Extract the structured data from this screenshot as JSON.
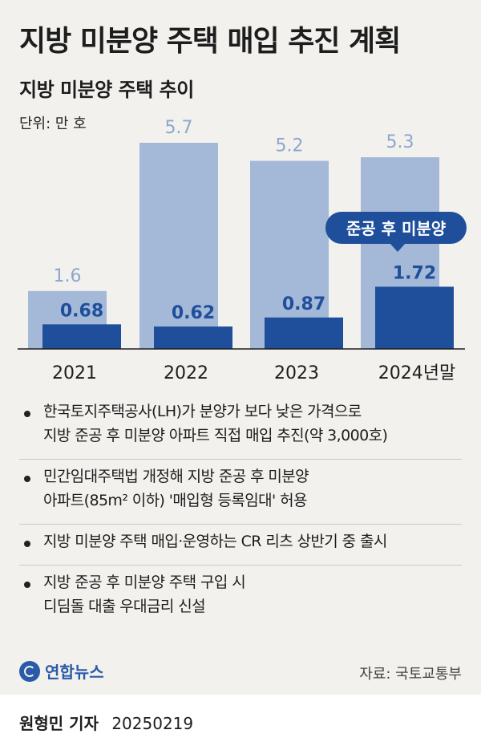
{
  "title": "지방 미분양 주택 매입 추진 계획",
  "subtitle": "지방 미분양 주택 추이",
  "unit": "단위: 만 호",
  "chart_data": {
    "type": "bar",
    "categories": [
      "2021",
      "2022",
      "2023",
      "2024년말"
    ],
    "series": [
      {
        "name": "",
        "values": [
          1.6,
          5.7,
          5.2,
          5.3
        ],
        "color": "#a4b8d8"
      },
      {
        "name": "준공 후 미분양",
        "values": [
          0.68,
          0.62,
          0.87,
          1.72
        ],
        "color": "#1f4f9b"
      }
    ],
    "ylim": [
      0,
      5.7
    ],
    "callout": "준공 후 미분양",
    "grid": false
  },
  "bullets": [
    [
      "한국토지주택공사(LH)가 분양가 보다 낮은 가격으로",
      "지방 준공 후 미분양 아파트 직접 매입 추진(약 3,000호)"
    ],
    [
      "민간임대주택법 개정해 지방 준공 후 미분양",
      "아파트(85m² 이하) '매입형 등록임대' 허용"
    ],
    [
      "지방 미분양 주택 매입·운영하는 CR 리츠 상반기 중 출시"
    ],
    [
      "지방 준공 후 미분양 주택 구입 시",
      "디딤돌 대출 우대금리 신설"
    ]
  ],
  "logo_text": "연합뉴스",
  "source": "자료: 국토교통부",
  "author": "원형민 기자",
  "date": "20250219"
}
